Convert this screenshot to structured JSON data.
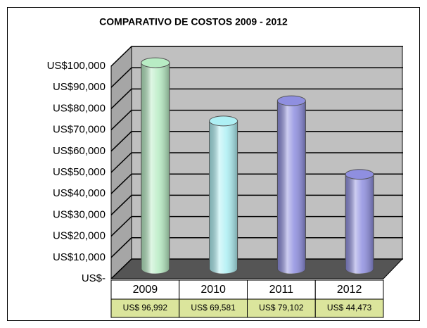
{
  "chart_data": {
    "type": "bar",
    "title": "COMPARATIVO DE COSTOS 2009 - 2012",
    "categories": [
      "2009",
      "2010",
      "2011",
      "2012"
    ],
    "values": [
      96992,
      69581,
      79102,
      44473
    ],
    "value_labels": [
      "US$ 96,992",
      "US$ 69,581",
      "US$ 79,102",
      "US$ 44,473"
    ],
    "colors": [
      "#b8ecc4",
      "#aef0f4",
      "#8f8fe0",
      "#8f8fe0"
    ],
    "ylim": [
      0,
      100000
    ],
    "yticks": [
      {
        "value": 0,
        "label": "US$-"
      },
      {
        "value": 10000,
        "label": "US$10,000"
      },
      {
        "value": 20000,
        "label": "US$20,000"
      },
      {
        "value": 30000,
        "label": "US$30,000"
      },
      {
        "value": 40000,
        "label": "US$40,000"
      },
      {
        "value": 50000,
        "label": "US$50,000"
      },
      {
        "value": 60000,
        "label": "US$60,000"
      },
      {
        "value": 70000,
        "label": "US$70,000"
      },
      {
        "value": 80000,
        "label": "US$80,000"
      },
      {
        "value": 90000,
        "label": "US$90,000"
      },
      {
        "value": 100000,
        "label": "US$100,000"
      }
    ],
    "grid": true
  }
}
